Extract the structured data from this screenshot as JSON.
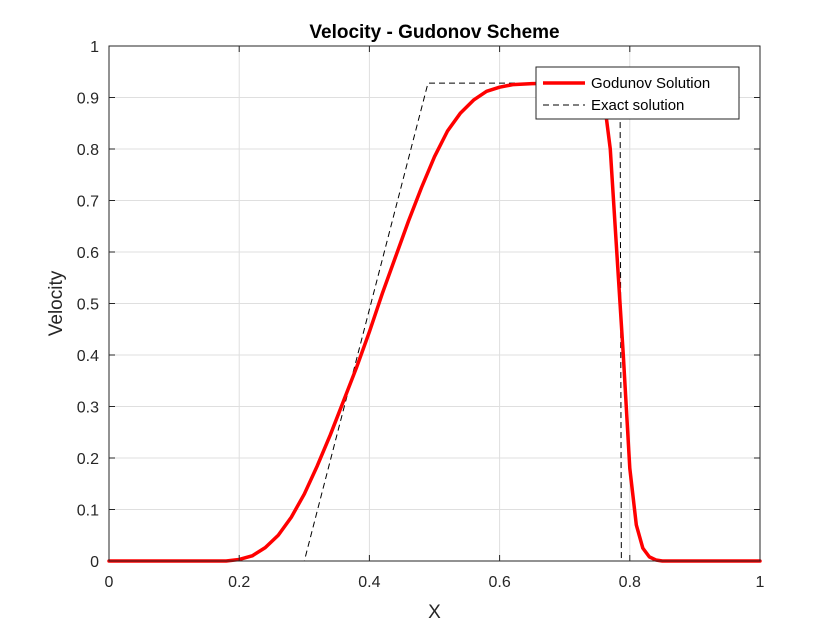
{
  "chart_data": {
    "type": "line",
    "title": "Velocity - Gudonov Scheme",
    "xlabel": "X",
    "ylabel": "Velocity",
    "xlim": [
      0,
      1
    ],
    "ylim": [
      0,
      1
    ],
    "xticks": [
      0,
      0.2,
      0.4,
      0.6,
      0.8,
      1
    ],
    "xtick_labels": [
      "0",
      "0.2",
      "0.4",
      "0.6",
      "0.8",
      "1"
    ],
    "yticks": [
      0,
      0.1,
      0.2,
      0.3,
      0.4,
      0.5,
      0.6,
      0.7,
      0.8,
      0.9,
      1
    ],
    "ytick_labels": [
      "0",
      "0.1",
      "0.2",
      "0.3",
      "0.4",
      "0.5",
      "0.6",
      "0.7",
      "0.8",
      "0.9",
      "1"
    ],
    "grid": true,
    "legend_position": "top-right",
    "series": [
      {
        "name": "Godunov Solution",
        "color": "#ff0000",
        "style": "solid",
        "x": [
          0,
          0.18,
          0.2,
          0.22,
          0.24,
          0.26,
          0.28,
          0.3,
          0.32,
          0.34,
          0.36,
          0.38,
          0.4,
          0.42,
          0.44,
          0.46,
          0.48,
          0.5,
          0.52,
          0.54,
          0.56,
          0.58,
          0.6,
          0.62,
          0.65,
          0.7,
          0.74,
          0.76,
          0.77,
          0.78,
          0.79,
          0.8,
          0.81,
          0.82,
          0.83,
          0.84,
          0.85,
          0.87,
          1
        ],
        "y": [
          0,
          0,
          0.003,
          0.01,
          0.026,
          0.05,
          0.085,
          0.13,
          0.185,
          0.245,
          0.31,
          0.375,
          0.445,
          0.52,
          0.59,
          0.66,
          0.725,
          0.785,
          0.835,
          0.87,
          0.895,
          0.912,
          0.92,
          0.925,
          0.927,
          0.928,
          0.925,
          0.9,
          0.8,
          0.6,
          0.4,
          0.18,
          0.07,
          0.025,
          0.008,
          0.002,
          0,
          0,
          0
        ]
      },
      {
        "name": "Exact solution",
        "color": "#000000",
        "style": "dashed",
        "x": [
          0,
          0.3,
          0.49,
          0.785,
          0.787,
          1
        ],
        "y": [
          0,
          0,
          0.928,
          0.928,
          0,
          0
        ]
      }
    ]
  }
}
